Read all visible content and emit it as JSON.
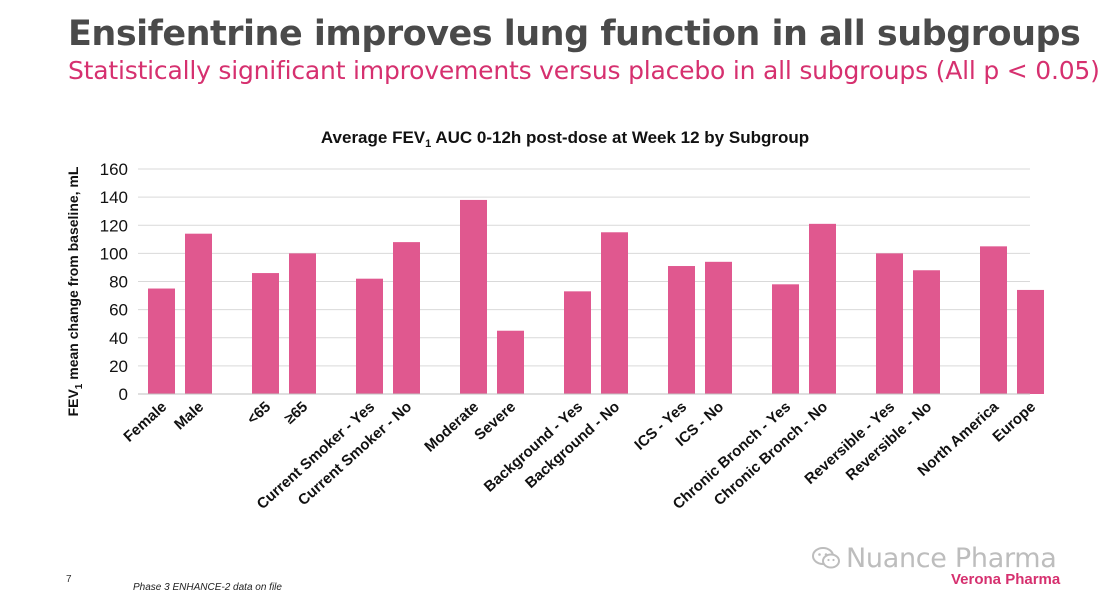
{
  "slide": {
    "title": "Ensifentrine improves lung function in all subgroups",
    "subtitle": "Statistically significant improvements versus placebo in all subgroups (All p < 0.05)",
    "page_number": "7",
    "footnote": "Phase 3 ENHANCE-2 data on file",
    "watermark": "Nuance Pharma",
    "brand": "Verona Pharma"
  },
  "colors": {
    "bar": "#e0588f",
    "title": "#4a4a4a",
    "accent": "#d6306f",
    "grid": "#d9d9d9"
  },
  "chart_data": {
    "type": "bar",
    "title": "Average FEV1 AUC 0-12h post-dose at Week 12 by Subgroup",
    "ylabel": "FEV1 mean change from baseline, mL",
    "xlabel": "",
    "ylim": [
      0,
      160
    ],
    "yticks": [
      0,
      20,
      40,
      60,
      80,
      100,
      120,
      140,
      160
    ],
    "grid": true,
    "categories": [
      "Female",
      "Male",
      "<65",
      "≥65",
      "Current Smoker - Yes",
      "Current Smoker - No",
      "Moderate",
      "Severe",
      "Background - Yes",
      "Background - No",
      "ICS - Yes",
      "ICS - No",
      "Chronic Bronch - Yes",
      "Chronic Bronch - No",
      "Reversible - Yes",
      "Reversible - No",
      "North America",
      "Europe"
    ],
    "values": [
      75,
      114,
      86,
      100,
      82,
      108,
      138,
      45,
      73,
      115,
      91,
      94,
      78,
      121,
      100,
      88,
      105,
      74
    ]
  }
}
